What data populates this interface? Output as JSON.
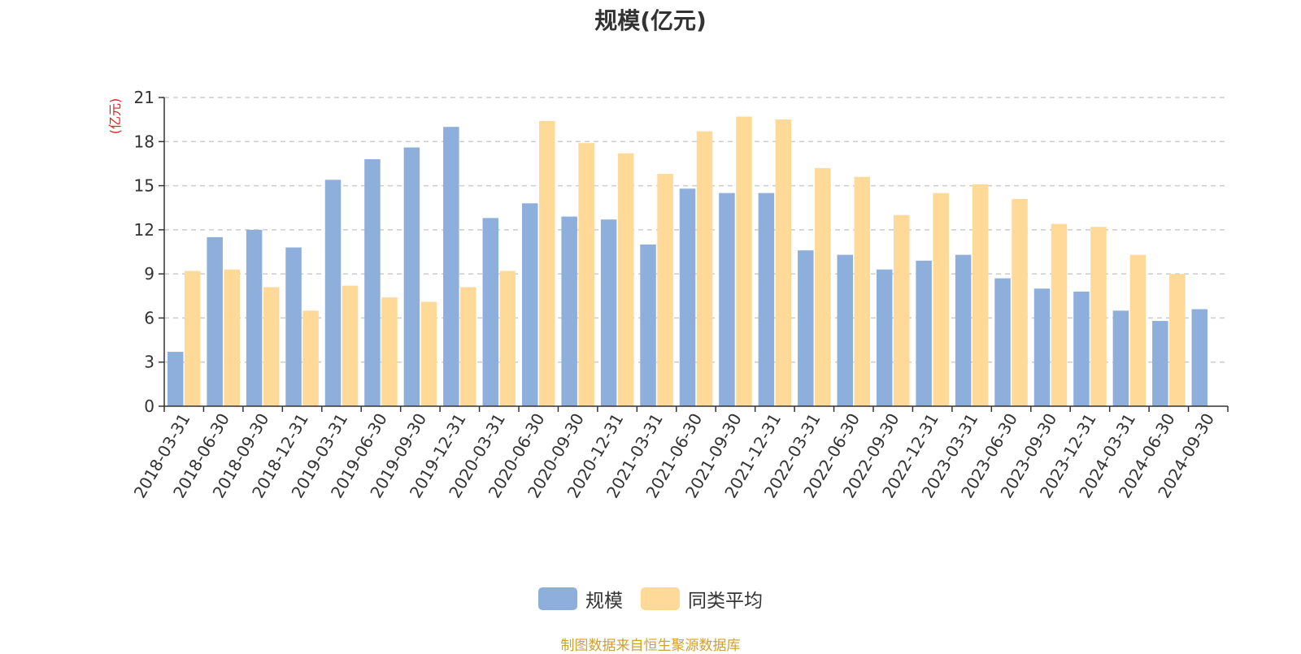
{
  "chart_data": {
    "type": "bar",
    "title": "规模(亿元)",
    "ylabel": "(亿元)",
    "ylim": [
      0,
      21
    ],
    "yticks": [
      0,
      3,
      6,
      9,
      12,
      15,
      18,
      21
    ],
    "grid": true,
    "legend_position": "bottom-center",
    "categories": [
      "2018-03-31",
      "2018-06-30",
      "2018-09-30",
      "2018-12-31",
      "2019-03-31",
      "2019-06-30",
      "2019-09-30",
      "2019-12-31",
      "2020-03-31",
      "2020-06-30",
      "2020-09-30",
      "2020-12-31",
      "2021-03-31",
      "2021-06-30",
      "2021-09-30",
      "2021-12-31",
      "2022-03-31",
      "2022-06-30",
      "2022-09-30",
      "2022-12-31",
      "2023-03-31",
      "2023-06-30",
      "2023-09-30",
      "2023-12-31",
      "2024-03-31",
      "2024-06-30",
      "2024-09-30"
    ],
    "series": [
      {
        "name": "规模",
        "color": "#8eaedb",
        "values": [
          3.7,
          11.5,
          12.0,
          10.8,
          15.4,
          16.8,
          17.6,
          19.0,
          12.8,
          13.8,
          12.9,
          12.7,
          11.0,
          14.8,
          14.5,
          14.5,
          10.6,
          10.3,
          9.3,
          9.9,
          10.3,
          8.7,
          8.0,
          7.8,
          6.5,
          5.8,
          6.6
        ]
      },
      {
        "name": "同类平均",
        "color": "#fed998",
        "values": [
          9.2,
          9.3,
          8.1,
          6.5,
          8.2,
          7.4,
          7.1,
          8.1,
          9.2,
          19.4,
          17.9,
          17.2,
          15.8,
          18.7,
          19.7,
          19.5,
          16.2,
          15.6,
          13.0,
          14.5,
          15.1,
          14.1,
          12.4,
          12.2,
          10.3,
          9.0,
          null
        ]
      }
    ]
  },
  "footer": {
    "source": "制图数据来自恒生聚源数据库",
    "source_color": "#d0a030"
  }
}
